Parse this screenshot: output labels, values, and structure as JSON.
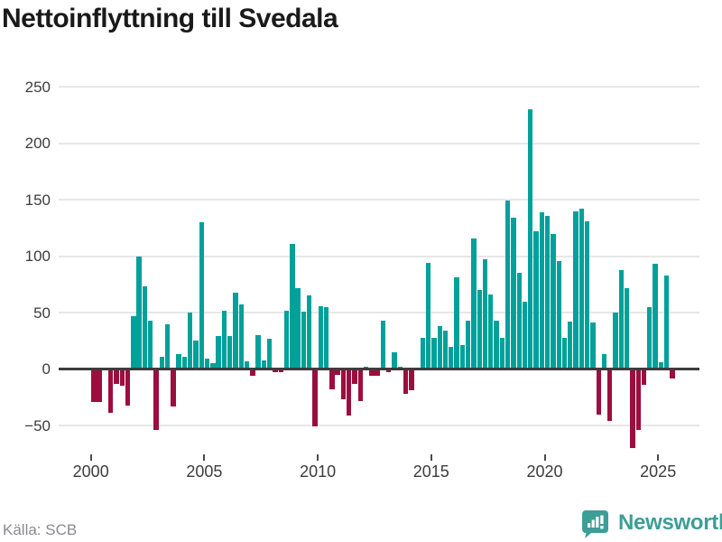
{
  "title": "Nettoinflyttning till Svedala",
  "source": "Källa: SCB",
  "branding": {
    "name": "Newsworthy"
  },
  "colors": {
    "positive": "#00a19a",
    "negative": "#9c0e3e",
    "grid": "#e7e7e7",
    "zero_line": "#3d3d3d",
    "title_text": "#1a1a1a",
    "axis_text": "#3c3c3c",
    "source_text": "#8a8a94",
    "brand": "#3c9e97"
  },
  "chart_data": {
    "type": "bar",
    "title": "Nettoinflyttning till Svedala",
    "xlabel": "",
    "ylabel": "",
    "frequency": "quarterly",
    "x_start": {
      "year": 2000,
      "quarter": 1
    },
    "x_tick_years": [
      2000,
      2005,
      2010,
      2015,
      2020,
      2025
    ],
    "y_ticks": [
      250,
      200,
      150,
      100,
      50,
      0,
      -50
    ],
    "ylim": [
      -75,
      255
    ],
    "grid": true,
    "legend": false,
    "series": [
      {
        "name": "Nettoinflyttning",
        "values": [
          -29,
          -29,
          0,
          -39,
          -13,
          -15,
          -32,
          47,
          100,
          73,
          43,
          -54,
          11,
          40,
          -33,
          13,
          11,
          50,
          25,
          130,
          9,
          5,
          29,
          52,
          29,
          68,
          57,
          7,
          -6,
          30,
          8,
          27,
          -3,
          -3,
          52,
          111,
          72,
          51,
          65,
          -51,
          56,
          55,
          -18,
          -5,
          -27,
          -41,
          -13,
          -28,
          2,
          -6,
          -6,
          43,
          -3,
          15,
          2,
          -22,
          -19,
          0,
          28,
          94,
          28,
          38,
          34,
          20,
          81,
          21,
          43,
          116,
          70,
          97,
          66,
          43,
          28,
          149,
          134,
          85,
          60,
          230,
          122,
          139,
          136,
          120,
          96,
          28,
          42,
          140,
          142,
          131,
          41,
          -40,
          13,
          -46,
          50,
          88,
          72,
          -70,
          -54,
          -14,
          55,
          93,
          6,
          83,
          -8
        ]
      }
    ]
  }
}
